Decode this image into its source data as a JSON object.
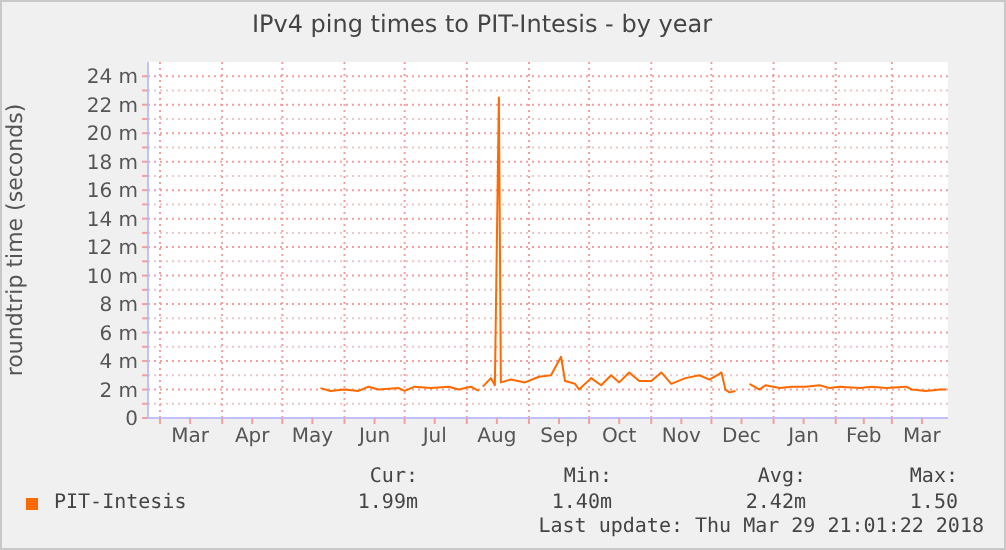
{
  "chart_data": {
    "type": "line",
    "title": "IPv4 ping times to PIT-Intesis - by year",
    "ylabel": "roundtrip time (seconds)",
    "x": [
      "2017-05-20",
      "2017-05-25",
      "2017-06-01",
      "2017-06-08",
      "2017-06-13",
      "2017-06-18",
      "2017-06-28",
      "2017-07-01",
      "2017-07-06",
      "2017-07-14",
      "2017-07-23",
      "2017-07-28",
      "2017-08-03",
      "2017-08-07",
      "2017-08-08",
      "2017-08-09",
      "2017-08-13",
      "2017-08-15",
      "2017-08-17",
      "2017-08-18",
      "2017-08-23",
      "2017-08-30",
      "2017-09-06",
      "2017-09-12",
      "2017-09-17",
      "2017-09-19",
      "2017-09-24",
      "2017-09-26",
      "2017-10-02",
      "2017-10-07",
      "2017-10-12",
      "2017-10-16",
      "2017-10-21",
      "2017-10-26",
      "2017-11-01",
      "2017-11-06",
      "2017-11-11",
      "2017-11-18",
      "2017-11-25",
      "2017-11-30",
      "2017-12-05",
      "2017-12-06",
      "2017-12-08",
      "2017-12-10",
      "2017-12-13",
      "2017-12-16",
      "2017-12-20",
      "2017-12-25",
      "2017-12-28",
      "2018-01-04",
      "2018-01-10",
      "2018-01-17",
      "2018-01-24",
      "2018-01-29",
      "2018-02-03",
      "2018-02-13",
      "2018-02-19",
      "2018-02-26",
      "2018-03-08",
      "2018-03-11",
      "2018-03-18",
      "2018-03-25",
      "2018-03-28"
    ],
    "series": [
      {
        "name": "PIT-Intesis",
        "color": "#ff6a00",
        "values": [
          2.1,
          1.9,
          2.0,
          1.9,
          2.2,
          2.0,
          2.1,
          1.9,
          2.2,
          2.1,
          2.2,
          2.0,
          2.2,
          1.9,
          null,
          2.2,
          2.8,
          2.3,
          22.5,
          2.5,
          2.7,
          2.5,
          2.9,
          3.0,
          4.3,
          2.6,
          2.4,
          2.0,
          2.8,
          2.3,
          3.0,
          2.5,
          3.2,
          2.6,
          2.6,
          3.2,
          2.4,
          2.8,
          3.0,
          2.7,
          3.1,
          3.2,
          2.0,
          1.8,
          1.9,
          null,
          2.4,
          2.0,
          2.3,
          2.1,
          2.2,
          2.2,
          2.3,
          2.1,
          2.2,
          2.1,
          2.2,
          2.1,
          2.2,
          2.0,
          1.9,
          2.0,
          2.0
        ]
      }
    ],
    "xlim": [
      "2017-02-23",
      "2018-03-29"
    ],
    "xticks": [
      {
        "value": "2017-03-01",
        "label": null
      },
      {
        "value": "2017-03-16",
        "label": "Mar"
      },
      {
        "value": "2017-04-01",
        "label": null
      },
      {
        "value": "2017-04-16",
        "label": "Apr"
      },
      {
        "value": "2017-05-01",
        "label": null
      },
      {
        "value": "2017-05-16",
        "label": "May"
      },
      {
        "value": "2017-06-01",
        "label": null
      },
      {
        "value": "2017-06-16",
        "label": "Jun"
      },
      {
        "value": "2017-07-01",
        "label": null
      },
      {
        "value": "2017-07-16",
        "label": "Jul"
      },
      {
        "value": "2017-08-01",
        "label": null
      },
      {
        "value": "2017-08-16",
        "label": "Aug"
      },
      {
        "value": "2017-09-01",
        "label": null
      },
      {
        "value": "2017-09-16",
        "label": "Sep"
      },
      {
        "value": "2017-10-01",
        "label": null
      },
      {
        "value": "2017-10-16",
        "label": "Oct"
      },
      {
        "value": "2017-11-01",
        "label": null
      },
      {
        "value": "2017-11-16",
        "label": "Nov"
      },
      {
        "value": "2017-12-01",
        "label": null
      },
      {
        "value": "2017-12-16",
        "label": "Dec"
      },
      {
        "value": "2018-01-01",
        "label": null
      },
      {
        "value": "2018-01-16",
        "label": "Jan"
      },
      {
        "value": "2018-02-01",
        "label": null
      },
      {
        "value": "2018-02-15",
        "label": "Feb"
      },
      {
        "value": "2018-03-01",
        "label": null
      },
      {
        "value": "2018-03-16",
        "label": "Mar"
      }
    ],
    "ylim": [
      0,
      25
    ],
    "yticks": [
      0,
      {
        "value": 1,
        "label": null
      },
      {
        "value": 2,
        "label": "2 m"
      },
      {
        "value": 3,
        "label": null
      },
      {
        "value": 4,
        "label": "4 m"
      },
      {
        "value": 5,
        "label": null
      },
      {
        "value": 6,
        "label": "6 m"
      },
      {
        "value": 7,
        "label": null
      },
      {
        "value": 8,
        "label": "8 m"
      },
      {
        "value": 9,
        "label": null
      },
      {
        "value": 10,
        "label": "10 m"
      },
      {
        "value": 11,
        "label": null
      },
      {
        "value": 12,
        "label": "12 m"
      },
      {
        "value": 13,
        "label": null
      },
      {
        "value": 14,
        "label": "14 m"
      },
      {
        "value": 15,
        "label": null
      },
      {
        "value": 16,
        "label": "16 m"
      },
      {
        "value": 17,
        "label": null
      },
      {
        "value": 18,
        "label": "18 m"
      },
      {
        "value": 19,
        "label": null
      },
      {
        "value": 20,
        "label": "20 m"
      },
      {
        "value": 21,
        "label": null
      },
      {
        "value": 22,
        "label": "22 m"
      },
      {
        "value": 23,
        "label": null
      },
      {
        "value": 24,
        "label": "24 m"
      }
    ],
    "grid": true,
    "legend": "bottom",
    "annotations": [
      "Cur:",
      "Min:",
      "Avg:",
      "Max:",
      "1.99m",
      "1.40m",
      "2.42m",
      "1.50",
      "Last update: Thu Mar 29 21:01:22 2018"
    ]
  }
}
